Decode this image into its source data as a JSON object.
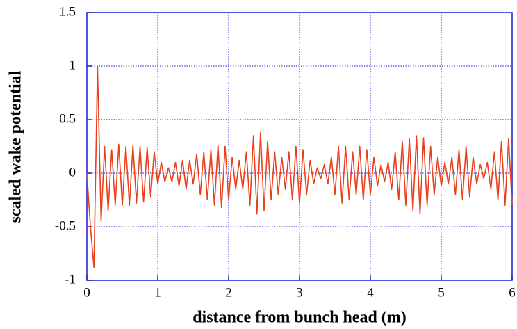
{
  "chart_data": {
    "type": "line",
    "xlabel": "distance from bunch head (m)",
    "ylabel": "scaled wake potential",
    "x": [
      0,
      0.05,
      0.1,
      0.15,
      0.2,
      0.25,
      0.3,
      0.35,
      0.4,
      0.45,
      0.5,
      0.55,
      0.6,
      0.65,
      0.7,
      0.75,
      0.8,
      0.85,
      0.9,
      0.95,
      1,
      1.05,
      1.1,
      1.15,
      1.2,
      1.25,
      1.3,
      1.35,
      1.4,
      1.45,
      1.5,
      1.55,
      1.6,
      1.65,
      1.7,
      1.75,
      1.8,
      1.85,
      1.9,
      1.95,
      2,
      2.05,
      2.1,
      2.15,
      2.2,
      2.25,
      2.3,
      2.35,
      2.4,
      2.45,
      2.5,
      2.55,
      2.6,
      2.65,
      2.7,
      2.75,
      2.8,
      2.85,
      2.9,
      2.95,
      3,
      3.05,
      3.1,
      3.15,
      3.2,
      3.25,
      3.3,
      3.35,
      3.4,
      3.45,
      3.5,
      3.55,
      3.6,
      3.65,
      3.7,
      3.75,
      3.8,
      3.85,
      3.9,
      3.95,
      4,
      4.05,
      4.1,
      4.15,
      4.2,
      4.25,
      4.3,
      4.35,
      4.4,
      4.45,
      4.5,
      4.55,
      4.6,
      4.65,
      4.7,
      4.75,
      4.8,
      4.85,
      4.9,
      4.95,
      5,
      5.05,
      5.1,
      5.15,
      5.2,
      5.25,
      5.3,
      5.35,
      5.4,
      5.45,
      5.5,
      5.55,
      5.6,
      5.65,
      5.7,
      5.75,
      5.8,
      5.85,
      5.9,
      5.95,
      6
    ],
    "series": [
      {
        "color": "#e8401c",
        "values": [
          0,
          -0.5,
          -0.88,
          1.0,
          -0.45,
          0.25,
          -0.35,
          0.22,
          -0.3,
          0.27,
          -0.3,
          0.25,
          -0.3,
          0.26,
          -0.28,
          0.25,
          -0.27,
          0.24,
          -0.22,
          0.2,
          -0.1,
          0.1,
          -0.08,
          0.05,
          -0.08,
          0.1,
          -0.12,
          0.12,
          -0.15,
          0.12,
          -0.1,
          0.18,
          -0.2,
          0.2,
          -0.25,
          0.22,
          -0.3,
          0.26,
          -0.32,
          0.25,
          -0.25,
          0.15,
          -0.15,
          0.12,
          -0.15,
          0.2,
          -0.3,
          0.35,
          -0.38,
          0.38,
          -0.35,
          0.3,
          -0.25,
          0.2,
          -0.2,
          0.15,
          -0.15,
          0.2,
          -0.25,
          0.25,
          -0.28,
          0.22,
          -0.2,
          0.12,
          -0.1,
          0.05,
          -0.05,
          0.08,
          -0.1,
          0.15,
          -0.2,
          0.25,
          -0.28,
          0.25,
          -0.25,
          0.2,
          -0.2,
          0.25,
          -0.25,
          0.22,
          -0.2,
          0.15,
          -0.12,
          0.08,
          -0.08,
          0.1,
          -0.15,
          0.2,
          -0.25,
          0.3,
          -0.3,
          0.32,
          -0.35,
          0.35,
          -0.38,
          0.33,
          -0.3,
          0.25,
          -0.2,
          0.15,
          -0.12,
          0.1,
          -0.1,
          0.15,
          -0.2,
          0.22,
          -0.25,
          0.25,
          -0.22,
          0.15,
          -0.1,
          0.08,
          -0.05,
          0.1,
          -0.15,
          0.2,
          -0.25,
          0.3,
          -0.3,
          0.32,
          -0.3
        ]
      }
    ],
    "xlim": [
      0,
      6
    ],
    "xticks": [
      0,
      1,
      2,
      3,
      4,
      5,
      6
    ],
    "ylim": [
      -1,
      1.5
    ],
    "yticks": [
      -1,
      -0.5,
      0,
      0.5,
      1,
      1.5
    ],
    "grid": true
  }
}
